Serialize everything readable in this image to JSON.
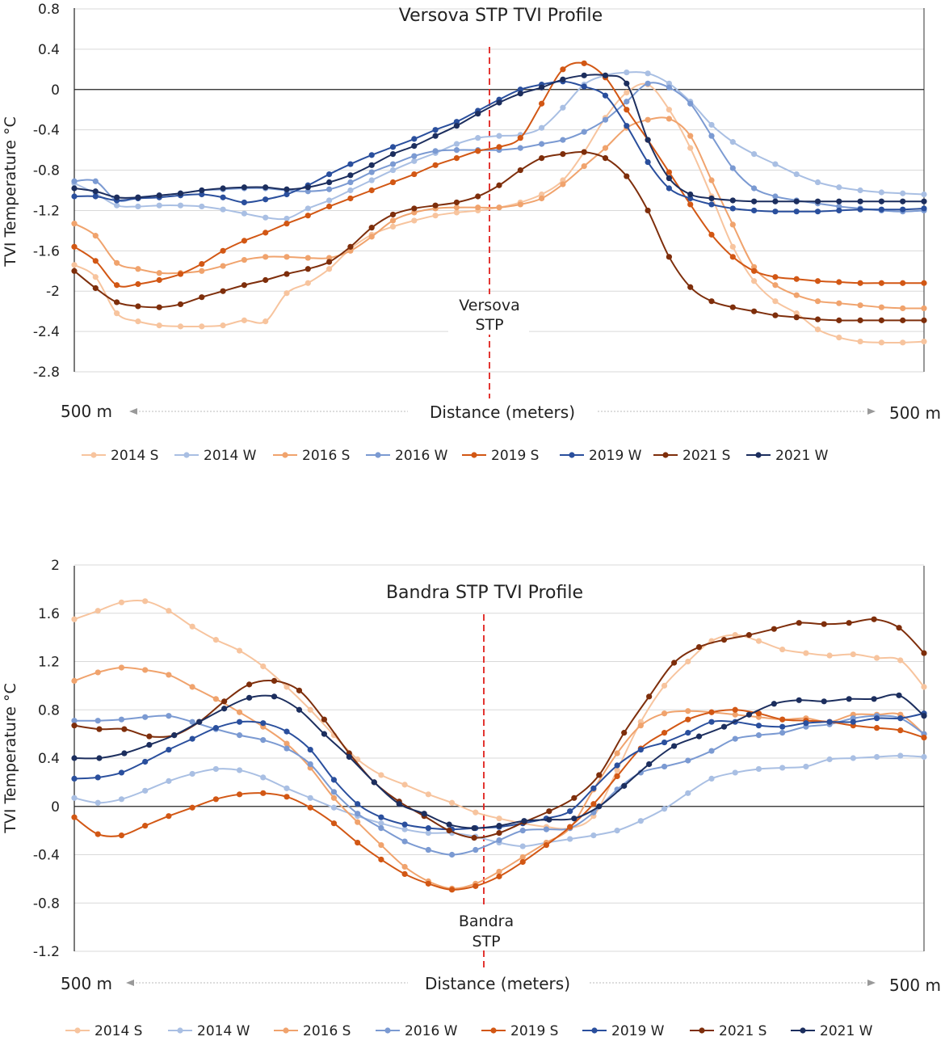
{
  "series_meta": [
    {
      "name": "2014 S",
      "color": "#f7c49e"
    },
    {
      "name": "2014 W",
      "color": "#a9bfe3"
    },
    {
      "name": "2016 S",
      "color": "#f0a36d"
    },
    {
      "name": "2016 W",
      "color": "#7b9ad2"
    },
    {
      "name": "2019 S",
      "color": "#d25714"
    },
    {
      "name": "2019 W",
      "color": "#2a4f9d"
    },
    {
      "name": "2021 S",
      "color": "#7e2e0b"
    },
    {
      "name": "2021 W",
      "color": "#1c2e5e"
    }
  ],
  "chart_data": [
    {
      "type": "line",
      "title": "Versova STP TVI Profile",
      "ylabel": "TVI Temperature °C",
      "xlabel": "Distance (meters)",
      "x_left_label": "500 m",
      "x_right_label": "500 m",
      "marker_label_line1": "Versova",
      "marker_label_line2": "STP",
      "ylim": [
        -2.8,
        0.8
      ],
      "yticks": [
        "0.8",
        "0.4",
        "0",
        "-0.4",
        "-0.8",
        "-1.2",
        "-1.6",
        "-2",
        "-2.4",
        "-2.8"
      ],
      "ytick_values": [
        0.8,
        0.4,
        0,
        -0.4,
        -0.8,
        -1.2,
        -1.6,
        -2,
        -2.4,
        -2.8
      ],
      "series": [
        {
          "name": "2014 S",
          "values": [
            -1.74,
            -1.86,
            -2.22,
            -2.3,
            -2.34,
            -2.35,
            -2.35,
            -2.34,
            -2.29,
            -2.3,
            -2.02,
            -1.92,
            -1.78,
            -1.58,
            -1.44,
            -1.36,
            -1.3,
            -1.25,
            -1.22,
            -1.2,
            -1.17,
            -1.12,
            -1.04,
            -0.9,
            -0.62,
            -0.28,
            -0.03,
            0.05,
            -0.2,
            -0.58,
            -1.06,
            -1.56,
            -1.9,
            -2.1,
            -2.22,
            -2.38,
            -2.46,
            -2.5,
            -2.51,
            -2.51,
            -2.5
          ]
        },
        {
          "name": "2014 W",
          "values": [
            -0.93,
            -1.03,
            -1.15,
            -1.16,
            -1.15,
            -1.15,
            -1.16,
            -1.19,
            -1.23,
            -1.27,
            -1.28,
            -1.18,
            -1.1,
            -1.0,
            -0.9,
            -0.8,
            -0.71,
            -0.63,
            -0.54,
            -0.48,
            -0.46,
            -0.45,
            -0.38,
            -0.18,
            0.05,
            0.14,
            0.17,
            0.16,
            0.06,
            -0.12,
            -0.35,
            -0.52,
            -0.64,
            -0.74,
            -0.84,
            -0.92,
            -0.97,
            -1.0,
            -1.02,
            -1.03,
            -1.04
          ]
        },
        {
          "name": "2016 S",
          "values": [
            -1.33,
            -1.45,
            -1.72,
            -1.78,
            -1.82,
            -1.82,
            -1.8,
            -1.75,
            -1.69,
            -1.66,
            -1.66,
            -1.67,
            -1.67,
            -1.6,
            -1.46,
            -1.3,
            -1.22,
            -1.18,
            -1.17,
            -1.17,
            -1.17,
            -1.14,
            -1.08,
            -0.94,
            -0.76,
            -0.58,
            -0.38,
            -0.3,
            -0.29,
            -0.46,
            -0.9,
            -1.34,
            -1.76,
            -1.94,
            -2.04,
            -2.1,
            -2.12,
            -2.14,
            -2.16,
            -2.17,
            -2.17
          ]
        },
        {
          "name": "2016 W",
          "values": [
            -0.91,
            -0.91,
            -1.1,
            -1.07,
            -1.05,
            -1.03,
            -1.0,
            -0.99,
            -0.98,
            -0.98,
            -1.0,
            -1.01,
            -0.99,
            -0.92,
            -0.82,
            -0.74,
            -0.66,
            -0.61,
            -0.6,
            -0.6,
            -0.6,
            -0.58,
            -0.54,
            -0.5,
            -0.42,
            -0.3,
            -0.12,
            0.06,
            0.02,
            -0.14,
            -0.46,
            -0.78,
            -0.98,
            -1.06,
            -1.1,
            -1.13,
            -1.16,
            -1.18,
            -1.2,
            -1.21,
            -1.2
          ]
        },
        {
          "name": "2019 S",
          "values": [
            -1.56,
            -1.7,
            -1.94,
            -1.93,
            -1.89,
            -1.83,
            -1.73,
            -1.6,
            -1.5,
            -1.42,
            -1.33,
            -1.25,
            -1.16,
            -1.08,
            -1.0,
            -0.92,
            -0.84,
            -0.75,
            -0.68,
            -0.61,
            -0.57,
            -0.48,
            -0.14,
            0.2,
            0.26,
            0.12,
            -0.2,
            -0.5,
            -0.82,
            -1.14,
            -1.44,
            -1.66,
            -1.8,
            -1.86,
            -1.88,
            -1.9,
            -1.91,
            -1.92,
            -1.92,
            -1.92,
            -1.92
          ]
        },
        {
          "name": "2019 W",
          "values": [
            -1.06,
            -1.06,
            -1.1,
            -1.08,
            -1.07,
            -1.05,
            -1.04,
            -1.07,
            -1.12,
            -1.09,
            -1.04,
            -0.95,
            -0.84,
            -0.74,
            -0.65,
            -0.57,
            -0.49,
            -0.4,
            -0.32,
            -0.21,
            -0.1,
            0.0,
            0.05,
            0.08,
            0.03,
            -0.06,
            -0.36,
            -0.72,
            -0.98,
            -1.08,
            -1.14,
            -1.18,
            -1.2,
            -1.21,
            -1.21,
            -1.21,
            -1.2,
            -1.19,
            -1.19,
            -1.19,
            -1.18
          ]
        },
        {
          "name": "2021 S",
          "values": [
            -1.8,
            -1.97,
            -2.11,
            -2.15,
            -2.16,
            -2.13,
            -2.06,
            -2.0,
            -1.94,
            -1.89,
            -1.83,
            -1.78,
            -1.71,
            -1.56,
            -1.37,
            -1.24,
            -1.18,
            -1.15,
            -1.12,
            -1.06,
            -0.95,
            -0.8,
            -0.68,
            -0.64,
            -0.62,
            -0.68,
            -0.86,
            -1.2,
            -1.66,
            -1.96,
            -2.1,
            -2.16,
            -2.2,
            -2.24,
            -2.26,
            -2.28,
            -2.29,
            -2.29,
            -2.29,
            -2.29,
            -2.29
          ]
        },
        {
          "name": "2021 W",
          "values": [
            -0.98,
            -1.01,
            -1.07,
            -1.07,
            -1.05,
            -1.03,
            -1.0,
            -0.98,
            -0.97,
            -0.97,
            -0.99,
            -0.97,
            -0.92,
            -0.85,
            -0.75,
            -0.64,
            -0.56,
            -0.46,
            -0.36,
            -0.24,
            -0.13,
            -0.04,
            0.02,
            0.1,
            0.14,
            0.14,
            0.06,
            -0.5,
            -0.88,
            -1.04,
            -1.08,
            -1.1,
            -1.11,
            -1.11,
            -1.11,
            -1.11,
            -1.11,
            -1.11,
            -1.11,
            -1.11,
            -1.11
          ]
        }
      ]
    },
    {
      "type": "line",
      "title": "Bandra STP TVI Profile",
      "ylabel": "TVI Temperature °C",
      "xlabel": "Distance (meters)",
      "x_left_label": "500 m",
      "x_right_label": "500 m",
      "marker_label_line1": "Bandra",
      "marker_label_line2": "STP",
      "ylim": [
        -1.2,
        2
      ],
      "yticks": [
        "2",
        "1.6",
        "1.2",
        "0.8",
        "0.4",
        "0",
        "-0.4",
        "-0.8",
        "-1.2"
      ],
      "ytick_values": [
        2,
        1.6,
        1.2,
        0.8,
        0.4,
        0,
        -0.4,
        -0.8,
        -1.2
      ],
      "series": [
        {
          "name": "2014 S",
          "values": [
            1.55,
            1.62,
            1.69,
            1.7,
            1.62,
            1.49,
            1.38,
            1.29,
            1.16,
            0.99,
            0.8,
            0.59,
            0.39,
            0.26,
            0.18,
            0.1,
            0.03,
            -0.05,
            -0.1,
            -0.14,
            -0.17,
            -0.18,
            -0.08,
            0.3,
            0.7,
            1.0,
            1.2,
            1.37,
            1.42,
            1.37,
            1.3,
            1.27,
            1.25,
            1.26,
            1.23,
            1.21,
            0.99
          ]
        },
        {
          "name": "2014 W",
          "values": [
            0.07,
            0.03,
            0.06,
            0.13,
            0.21,
            0.27,
            0.31,
            0.3,
            0.24,
            0.15,
            0.07,
            -0.01,
            -0.08,
            -0.14,
            -0.19,
            -0.22,
            -0.22,
            -0.25,
            -0.3,
            -0.33,
            -0.3,
            -0.27,
            -0.24,
            -0.2,
            -0.12,
            -0.02,
            0.11,
            0.23,
            0.28,
            0.31,
            0.32,
            0.33,
            0.39,
            0.4,
            0.41,
            0.42,
            0.41
          ]
        },
        {
          "name": "2016 S",
          "values": [
            1.04,
            1.11,
            1.15,
            1.13,
            1.09,
            0.99,
            0.89,
            0.78,
            0.66,
            0.52,
            0.32,
            0.07,
            -0.13,
            -0.32,
            -0.5,
            -0.62,
            -0.68,
            -0.64,
            -0.54,
            -0.42,
            -0.3,
            -0.18,
            0.14,
            0.44,
            0.67,
            0.77,
            0.79,
            0.78,
            0.76,
            0.74,
            0.72,
            0.73,
            0.7,
            0.76,
            0.76,
            0.76,
            0.6
          ]
        },
        {
          "name": "2016 W",
          "values": [
            0.71,
            0.71,
            0.72,
            0.74,
            0.75,
            0.7,
            0.64,
            0.59,
            0.55,
            0.48,
            0.35,
            0.12,
            -0.06,
            -0.18,
            -0.29,
            -0.36,
            -0.4,
            -0.36,
            -0.28,
            -0.2,
            -0.19,
            -0.18,
            -0.05,
            0.14,
            0.28,
            0.33,
            0.38,
            0.46,
            0.56,
            0.59,
            0.61,
            0.66,
            0.68,
            0.73,
            0.75,
            0.73,
            0.6
          ]
        },
        {
          "name": "2019 S",
          "values": [
            -0.09,
            -0.23,
            -0.24,
            -0.16,
            -0.08,
            -0.01,
            0.06,
            0.1,
            0.11,
            0.08,
            -0.01,
            -0.14,
            -0.3,
            -0.44,
            -0.56,
            -0.64,
            -0.69,
            -0.66,
            -0.58,
            -0.46,
            -0.32,
            -0.17,
            0.02,
            0.25,
            0.48,
            0.61,
            0.72,
            0.78,
            0.8,
            0.77,
            0.72,
            0.71,
            0.7,
            0.67,
            0.65,
            0.63,
            0.57
          ]
        },
        {
          "name": "2019 W",
          "values": [
            0.23,
            0.24,
            0.28,
            0.37,
            0.47,
            0.56,
            0.65,
            0.7,
            0.69,
            0.62,
            0.47,
            0.22,
            0.02,
            -0.09,
            -0.15,
            -0.18,
            -0.19,
            -0.18,
            -0.17,
            -0.14,
            -0.1,
            -0.04,
            0.15,
            0.34,
            0.47,
            0.53,
            0.61,
            0.7,
            0.7,
            0.67,
            0.66,
            0.69,
            0.7,
            0.7,
            0.73,
            0.73,
            0.77
          ]
        },
        {
          "name": "2021 S",
          "values": [
            0.67,
            0.64,
            0.64,
            0.58,
            0.59,
            0.7,
            0.87,
            1.01,
            1.04,
            0.96,
            0.72,
            0.44,
            0.2,
            0.04,
            -0.08,
            -0.2,
            -0.26,
            -0.22,
            -0.13,
            -0.04,
            0.07,
            0.26,
            0.61,
            0.91,
            1.19,
            1.32,
            1.38,
            1.42,
            1.47,
            1.52,
            1.51,
            1.52,
            1.55,
            1.48,
            1.27
          ]
        },
        {
          "name": "2021 W",
          "values": [
            0.4,
            0.4,
            0.44,
            0.51,
            0.59,
            0.7,
            0.81,
            0.9,
            0.91,
            0.8,
            0.6,
            0.41,
            0.2,
            0.02,
            -0.06,
            -0.15,
            -0.18,
            -0.16,
            -0.12,
            -0.11,
            -0.1,
            0.0,
            0.17,
            0.35,
            0.5,
            0.58,
            0.66,
            0.76,
            0.85,
            0.88,
            0.87,
            0.89,
            0.89,
            0.92,
            0.75
          ]
        }
      ]
    }
  ]
}
